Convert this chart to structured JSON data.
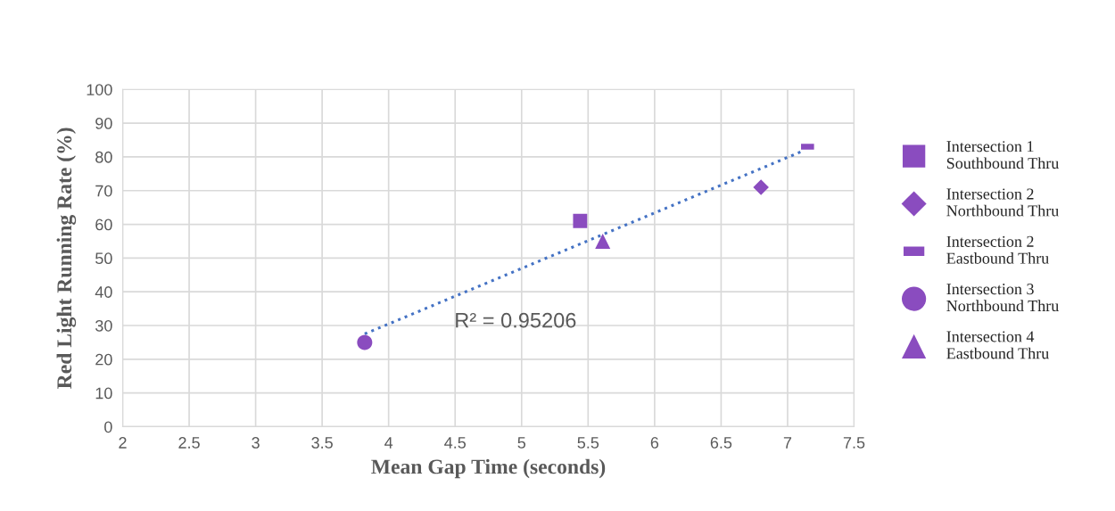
{
  "chart_data": {
    "type": "scatter",
    "xlabel": "Mean Gap Time (seconds)",
    "ylabel": "Red Light Running Rate (%)",
    "xlim": [
      2,
      7.5
    ],
    "xticks": [
      2,
      2.5,
      3,
      3.5,
      4,
      4.5,
      5,
      5.5,
      6,
      6.5,
      7,
      7.5
    ],
    "ylim": [
      0,
      100
    ],
    "yticks": [
      0,
      10,
      20,
      30,
      40,
      50,
      60,
      70,
      80,
      90,
      100
    ],
    "grid": true,
    "legend": "right",
    "series": [
      {
        "name": "Intersection 1\nSouthbound Thru",
        "color": "#8a4cbf",
        "marker": "square",
        "x": [
          5.44
        ],
        "values": [
          61
        ]
      },
      {
        "name": "Intersection 2\nNorthbound Thru",
        "color": "#8a4cbf",
        "marker": "diamond",
        "x": [
          6.8
        ],
        "values": [
          71
        ]
      },
      {
        "name": "Intersection 2\nEastbound Thru",
        "color": "#8a4cbf",
        "marker": "rectangle",
        "x": [
          7.15
        ],
        "values": [
          83
        ]
      },
      {
        "name": "Intersection 3\nNorthbound Thru",
        "color": "#8a4cbf",
        "marker": "circle",
        "x": [
          3.82
        ],
        "values": [
          25
        ]
      },
      {
        "name": "Intersection 4\nEastbound Thru",
        "color": "#8a4cbf",
        "marker": "triangle",
        "x": [
          5.61
        ],
        "values": [
          55
        ]
      },
      {
        "type": "line",
        "color": "#4472c4",
        "line_style": "dotted",
        "marker": "none",
        "x": [
          3.82,
          7.1
        ],
        "values": [
          27.5,
          81.5
        ]
      }
    ],
    "annotations": [
      "R² = 0.95206"
    ]
  }
}
